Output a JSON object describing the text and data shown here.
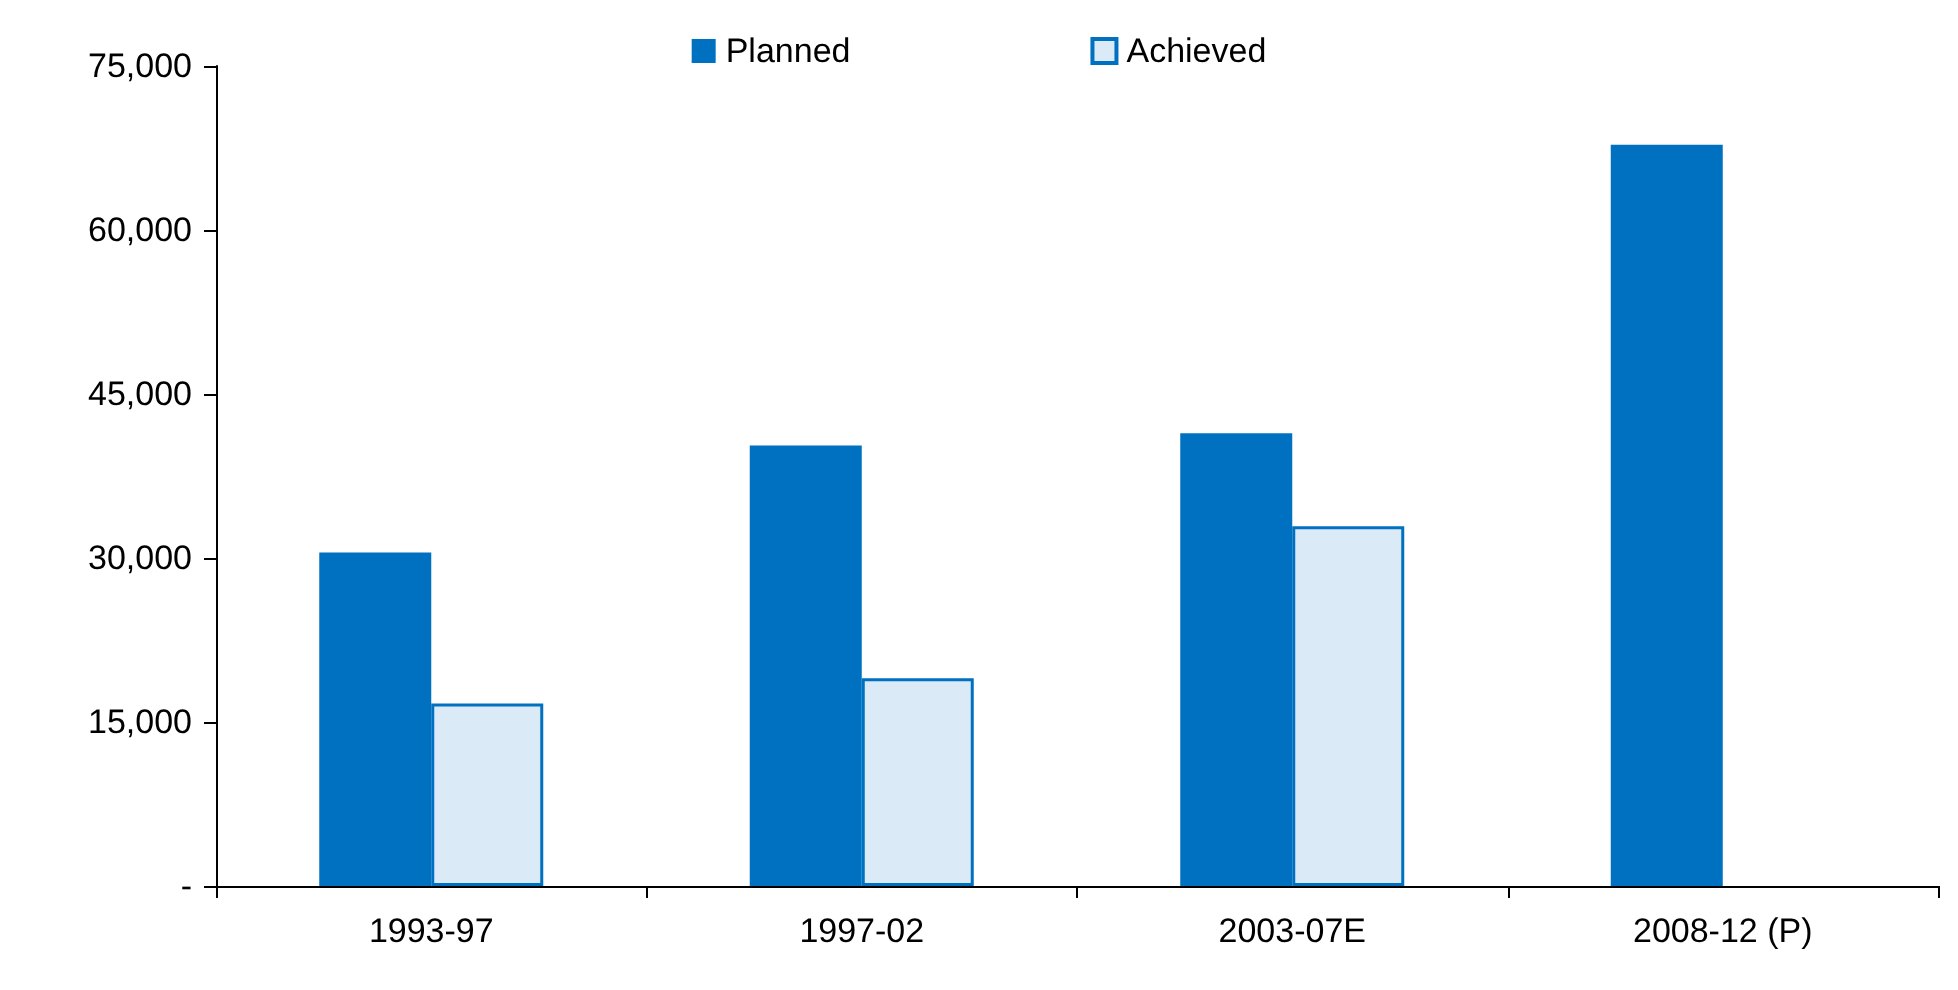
{
  "chart_data": {
    "type": "bar",
    "categories": [
      "1993-97",
      "1997-02",
      "2003-07E",
      "2008-12 (P)"
    ],
    "series": [
      {
        "name": "Planned",
        "color": "#0070c0",
        "values": [
          30500,
          40300,
          41400,
          67800
        ]
      },
      {
        "name": "Achieved",
        "color": "#dbeaf7",
        "values": [
          16700,
          19000,
          32900,
          null
        ]
      }
    ],
    "ylim": [
      0,
      75000
    ],
    "yticks": [
      {
        "value": 0,
        "label": "-"
      },
      {
        "value": 15000,
        "label": "15,000"
      },
      {
        "value": 30000,
        "label": "30,000"
      },
      {
        "value": 45000,
        "label": "45,000"
      },
      {
        "value": 60000,
        "label": "60,000"
      },
      {
        "value": 75000,
        "label": "75,000"
      }
    ],
    "legend": "top"
  }
}
